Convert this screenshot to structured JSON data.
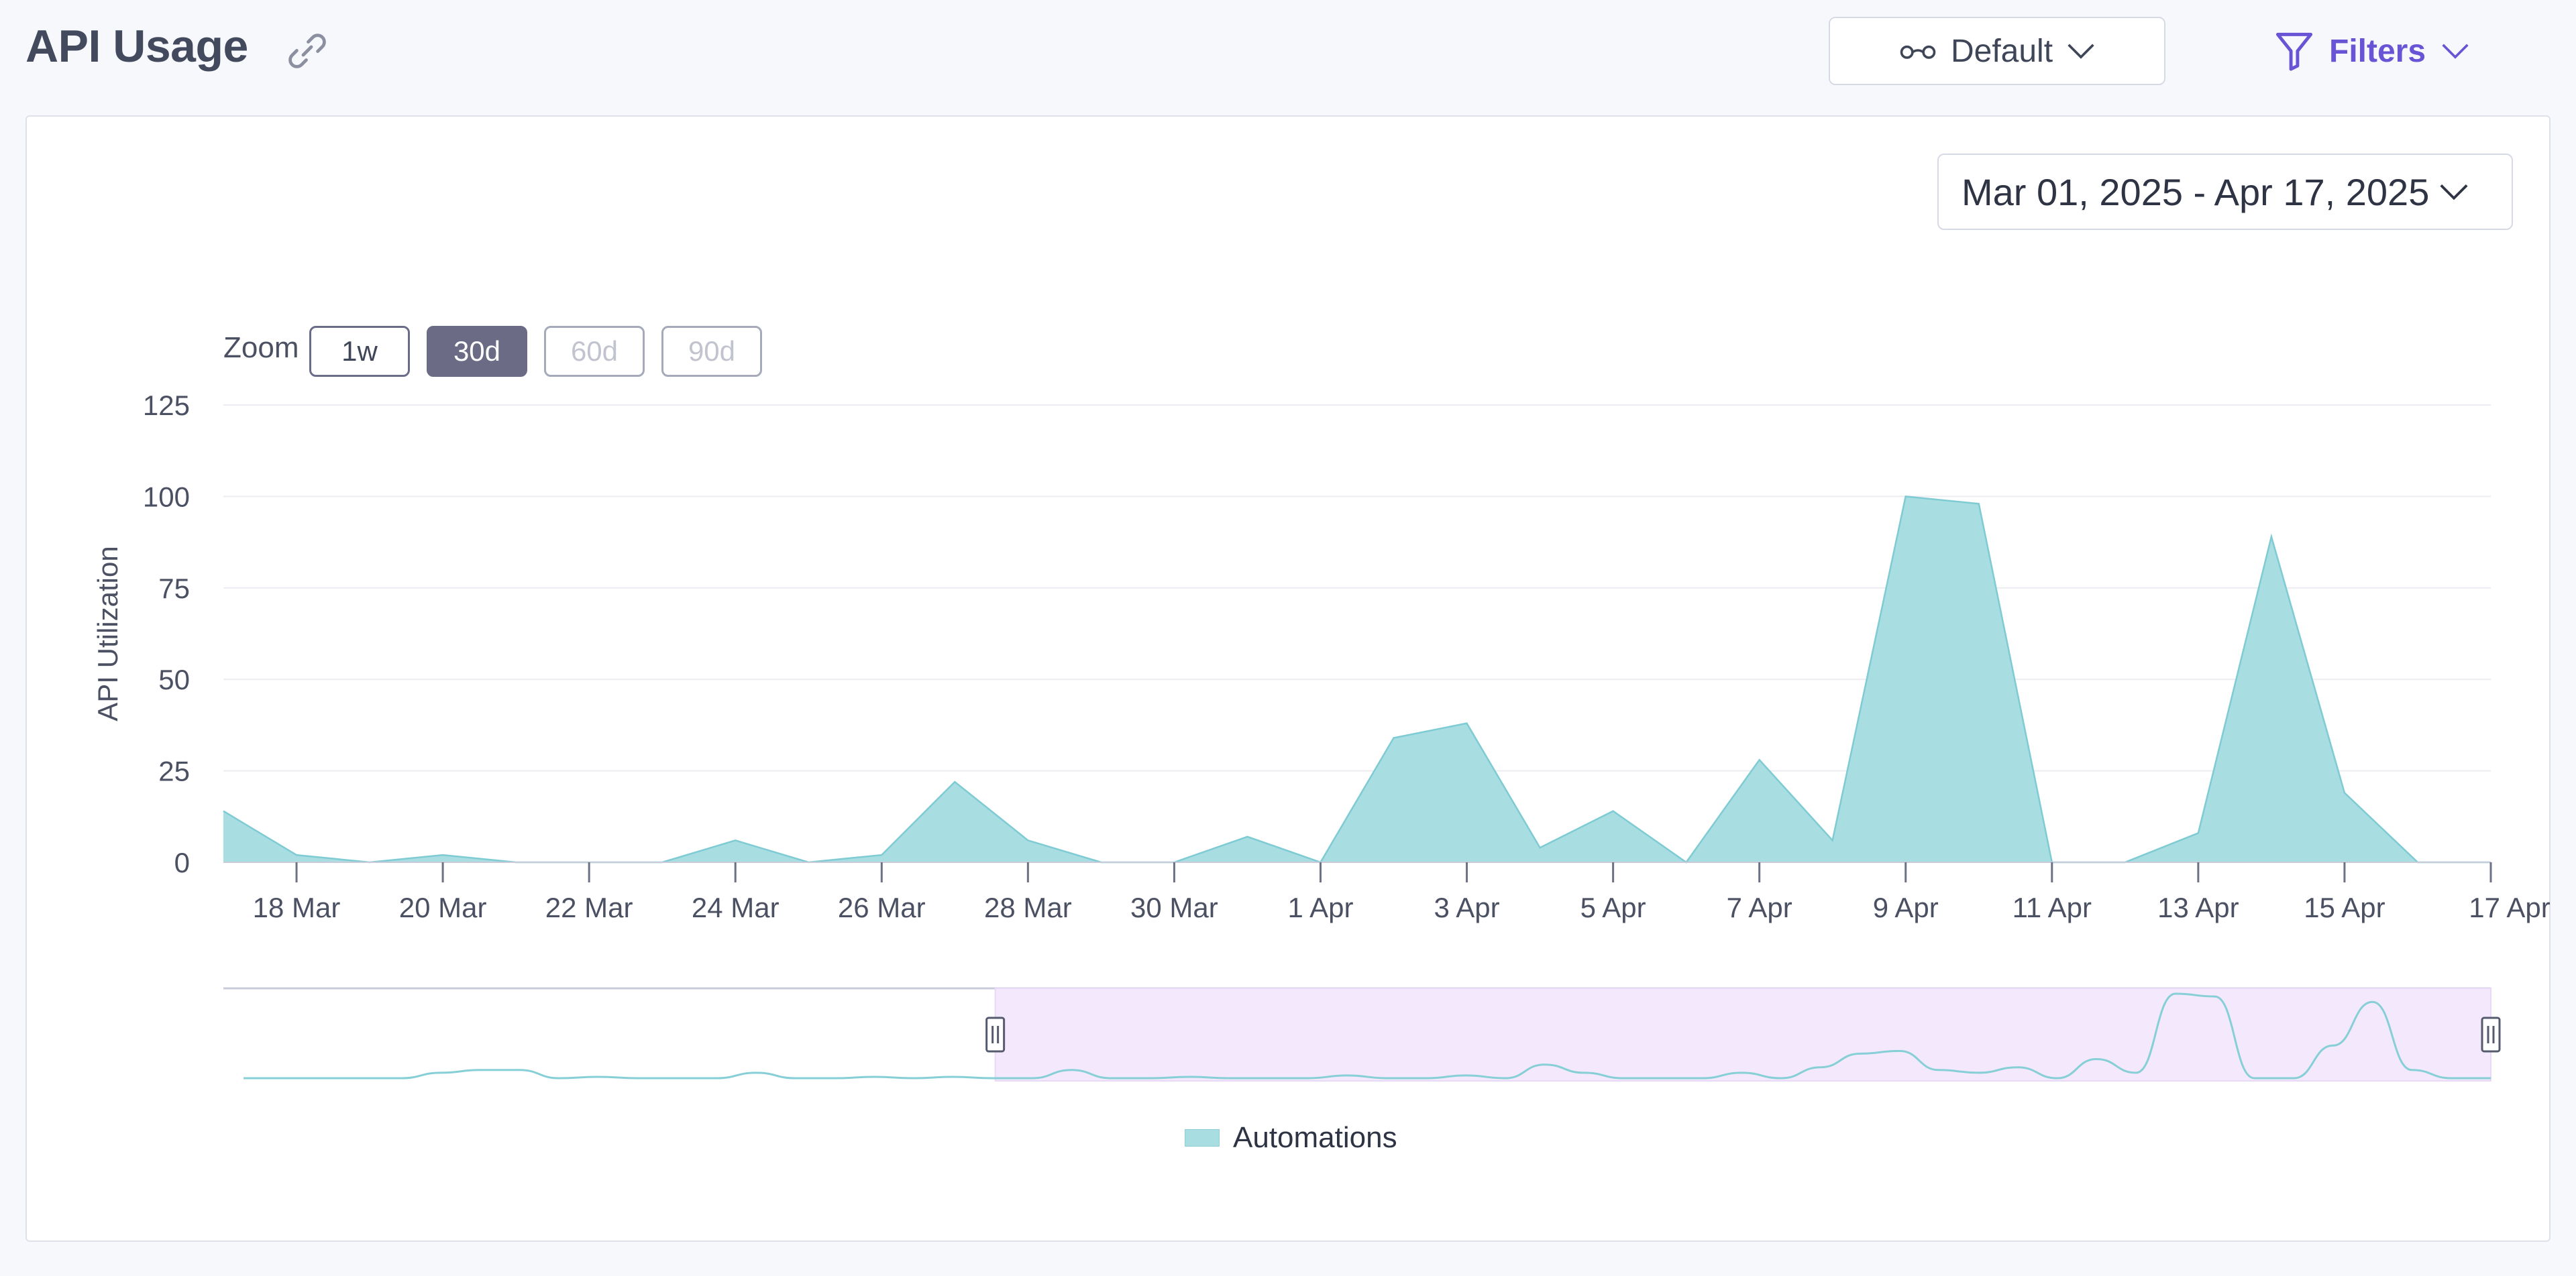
{
  "header": {
    "title": "API Usage",
    "view_select": {
      "label": "Default"
    },
    "filters": {
      "label": "Filters"
    }
  },
  "date_range": {
    "label": "Mar 01, 2025 - Apr 17, 2025"
  },
  "zoom": {
    "label": "Zoom",
    "buttons": [
      {
        "label": "1w",
        "state": "normal"
      },
      {
        "label": "30d",
        "state": "active"
      },
      {
        "label": "60d",
        "state": "disabled"
      },
      {
        "label": "90d",
        "state": "disabled"
      }
    ]
  },
  "legend": {
    "label": "Automations"
  },
  "colors": {
    "area_fill": "#a8dde2",
    "area_stroke": "#7fcbd3",
    "accent": "#6a54d6",
    "navigator_selection": "#f4e9fc"
  },
  "chart_data": {
    "type": "area",
    "title": "",
    "xlabel": "",
    "ylabel": "API Utilization",
    "ylim": [
      0,
      125
    ],
    "yticks": [
      0,
      25,
      50,
      75,
      100,
      125
    ],
    "x_range": [
      "2025-03-17",
      "2025-04-17"
    ],
    "xticks": [
      {
        "date": "2025-03-18",
        "label": "18 Mar"
      },
      {
        "date": "2025-03-20",
        "label": "20 Mar"
      },
      {
        "date": "2025-03-22",
        "label": "22 Mar"
      },
      {
        "date": "2025-03-24",
        "label": "24 Mar"
      },
      {
        "date": "2025-03-26",
        "label": "26 Mar"
      },
      {
        "date": "2025-03-28",
        "label": "28 Mar"
      },
      {
        "date": "2025-03-30",
        "label": "30 Mar"
      },
      {
        "date": "2025-04-01",
        "label": "1 Apr"
      },
      {
        "date": "2025-04-03",
        "label": "3 Apr"
      },
      {
        "date": "2025-04-05",
        "label": "5 Apr"
      },
      {
        "date": "2025-04-07",
        "label": "7 Apr"
      },
      {
        "date": "2025-04-09",
        "label": "9 Apr"
      },
      {
        "date": "2025-04-11",
        "label": "11 Apr"
      },
      {
        "date": "2025-04-13",
        "label": "13 Apr"
      },
      {
        "date": "2025-04-15",
        "label": "15 Apr"
      },
      {
        "date": "2025-04-17",
        "label": "17 Apr"
      }
    ],
    "grid": true,
    "legend_position": "bottom-center",
    "series": [
      {
        "name": "Automations",
        "x": [
          "2025-03-17",
          "2025-03-18",
          "2025-03-19",
          "2025-03-20",
          "2025-03-21",
          "2025-03-22",
          "2025-03-23",
          "2025-03-24",
          "2025-03-25",
          "2025-03-26",
          "2025-03-27",
          "2025-03-28",
          "2025-03-29",
          "2025-03-30",
          "2025-03-31",
          "2025-04-01",
          "2025-04-02",
          "2025-04-03",
          "2025-04-04",
          "2025-04-05",
          "2025-04-06",
          "2025-04-07",
          "2025-04-08",
          "2025-04-09",
          "2025-04-10",
          "2025-04-11",
          "2025-04-12",
          "2025-04-13",
          "2025-04-14",
          "2025-04-15",
          "2025-04-16",
          "2025-04-17"
        ],
        "values": [
          14,
          2,
          0,
          2,
          0,
          0,
          0,
          6,
          0,
          2,
          22,
          6,
          0,
          0,
          7,
          0,
          34,
          38,
          4,
          14,
          0,
          28,
          6,
          100,
          98,
          0,
          0,
          8,
          89,
          19,
          0,
          0
        ]
      }
    ]
  },
  "navigator": {
    "overview_range": [
      "2025-03-01",
      "2025-04-17"
    ],
    "selected_range": [
      "2025-03-17",
      "2025-04-17"
    ],
    "overview_values": [
      0,
      0,
      0,
      0,
      0,
      2,
      3,
      3,
      0,
      0.5,
      0,
      0,
      0,
      2,
      0,
      0,
      0.5,
      0,
      0.5,
      0,
      0,
      3,
      0,
      0,
      0.5,
      0,
      0,
      0,
      1,
      0,
      0,
      1,
      0,
      5,
      2,
      0,
      0,
      0,
      2,
      0,
      4,
      9,
      10,
      3,
      2,
      4,
      0,
      7,
      2,
      31,
      30,
      0,
      0,
      12,
      28,
      3,
      0,
      0
    ]
  }
}
